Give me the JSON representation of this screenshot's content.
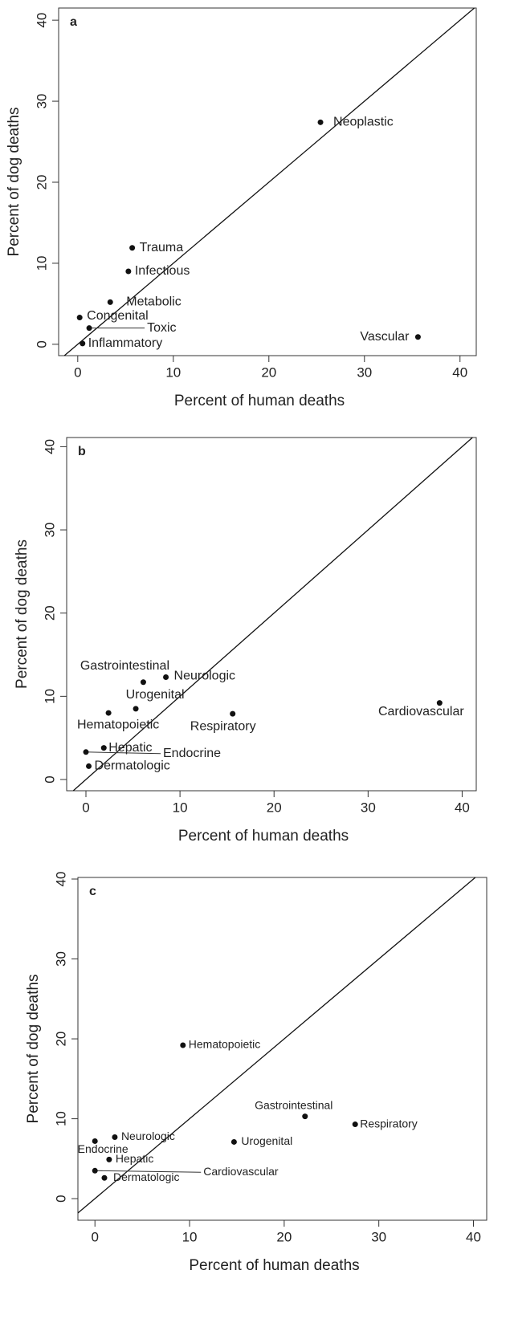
{
  "chart_data": [
    {
      "type": "scatter",
      "panel_label": "a",
      "xlabel": "Percent of human deaths",
      "ylabel": "Percent of dog deaths",
      "labels": [
        "Neoplastic",
        "Trauma",
        "Infectious",
        "Metabolic",
        "Congenital",
        "Toxic",
        "Inflammatory",
        "Vascular"
      ],
      "x": [
        25.4,
        5.7,
        5.3,
        3.4,
        0.2,
        1.2,
        0.5,
        35.6
      ],
      "values": [
        27.4,
        11.9,
        9.0,
        5.2,
        3.3,
        2.0,
        0.1,
        0.9
      ],
      "xlim": [
        -2.0,
        41.7
      ],
      "ylim": [
        -1.4,
        41.5
      ],
      "xticks": [
        0,
        10,
        20,
        30,
        40
      ],
      "yticks": [
        0,
        10,
        20,
        30,
        40
      ],
      "color": "#111111"
    },
    {
      "type": "scatter",
      "panel_label": "b",
      "xlabel": "Percent of human deaths",
      "ylabel": "Percent of dog deaths",
      "labels": [
        "Gastrointestinal",
        "Neurologic",
        "Urogenital",
        "Hematopoietic",
        "Respiratory",
        "Cardiovascular",
        "Hepatic",
        "Endocrine",
        "Dermatologic"
      ],
      "x": [
        6.1,
        8.5,
        5.3,
        2.4,
        15.6,
        37.6,
        1.9,
        0,
        0.3
      ],
      "values": [
        11.7,
        12.3,
        8.5,
        8.0,
        7.9,
        9.2,
        3.8,
        3.3,
        1.6
      ],
      "xlim": [
        -2.05,
        41.5
      ],
      "ylim": [
        -1.35,
        41.1
      ],
      "xticks": [
        0,
        10,
        20,
        30,
        40
      ],
      "yticks": [
        0,
        10,
        20,
        30,
        40
      ],
      "color": "#111111"
    },
    {
      "type": "scatter",
      "panel_label": "c",
      "xlabel": "Percent of human deaths",
      "ylabel": "Percent of dog deaths",
      "labels": [
        "Hematopoietic",
        "Gastrointestinal",
        "Respiratory",
        "Neurologic",
        "Endocrine",
        "Urogenital",
        "Hepatic",
        "Cardiovascular",
        "Dermatologic"
      ],
      "x": [
        9.3,
        22.2,
        27.5,
        2.1,
        0,
        14.7,
        1.5,
        0,
        1.0
      ],
      "values": [
        19.2,
        10.3,
        9.3,
        7.7,
        7.2,
        7.1,
        4.9,
        3.5,
        2.6
      ],
      "xlim": [
        -1.8,
        41.4
      ],
      "ylim": [
        -2.7,
        40.2
      ],
      "xticks": [
        0,
        10,
        20,
        30,
        40
      ],
      "yticks": [
        0,
        10,
        20,
        30,
        40
      ],
      "color": "#111111"
    }
  ]
}
